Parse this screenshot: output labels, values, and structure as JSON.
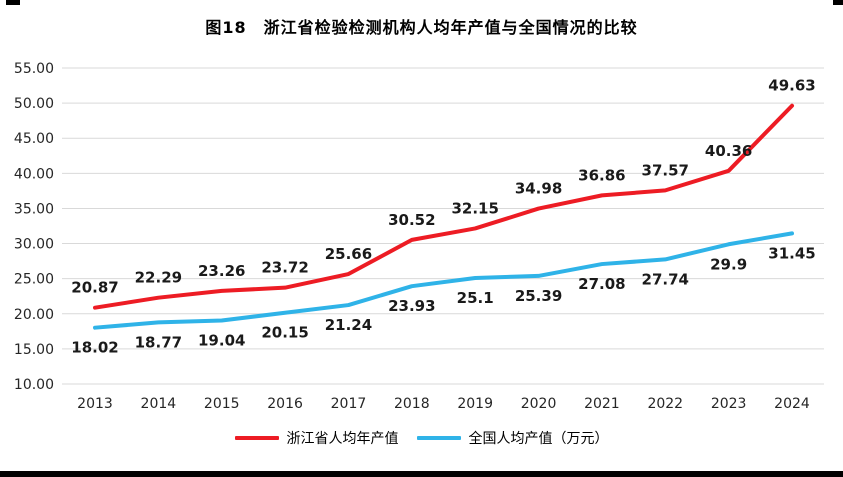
{
  "chart_data": {
    "type": "line",
    "title": "图18　浙江省检验检测机构人均年产值与全国情况的比较",
    "categories": [
      "2013",
      "2014",
      "2015",
      "2016",
      "2017",
      "2018",
      "2019",
      "2020",
      "2021",
      "2022",
      "2023",
      "2024"
    ],
    "series": [
      {
        "name": "浙江省人均年产值",
        "color": "#ed1c24",
        "values": [
          20.87,
          22.29,
          23.26,
          23.72,
          25.66,
          30.52,
          32.15,
          34.98,
          36.86,
          37.57,
          40.36,
          49.63
        ],
        "label_side": "above"
      },
      {
        "name": "全国人均产值（万元）",
        "color": "#2fb3e8",
        "values": [
          18.02,
          18.77,
          19.04,
          20.15,
          21.24,
          23.93,
          25.1,
          25.39,
          27.08,
          27.74,
          29.9,
          31.45
        ],
        "label_side": "below"
      }
    ],
    "ylim": [
      10,
      55
    ],
    "ytick_step": 5,
    "ytick_format_decimals": 2,
    "grid": true,
    "gridline_color": "#d9d9d9",
    "axis_text_color": "#262626",
    "label_text_color": "#1a1a1a",
    "legend_position": "bottom"
  }
}
